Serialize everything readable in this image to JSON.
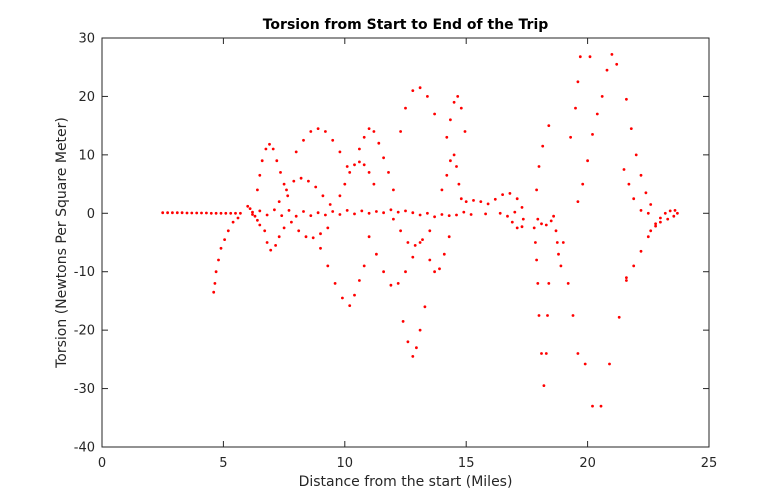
{
  "chart_data": {
    "type": "scatter",
    "title": "Torsion from Start to End of the Trip",
    "xlabel": "Distance from the start (Miles)",
    "ylabel": "Torsion (Newtons Per Square Meter)",
    "xlim": [
      0,
      25
    ],
    "ylim": [
      -40,
      30
    ],
    "xticks": [
      0,
      5,
      10,
      15,
      20,
      25
    ],
    "yticks": [
      -40,
      -30,
      -20,
      -10,
      0,
      10,
      20,
      30
    ],
    "grid": false,
    "marker_color": "#ff0000",
    "series": [
      {
        "points": [
          [
            2.5,
            0.1
          ],
          [
            2.7,
            0.1
          ],
          [
            2.9,
            0.1
          ],
          [
            3.1,
            0.1
          ],
          [
            3.3,
            0.1
          ],
          [
            3.5,
            0.05
          ],
          [
            3.7,
            0.05
          ],
          [
            3.9,
            0.05
          ],
          [
            4.1,
            0.05
          ],
          [
            4.3,
            0.05
          ],
          [
            4.5,
            0.0
          ],
          [
            4.7,
            0.0
          ],
          [
            4.9,
            0.0
          ],
          [
            5.1,
            0.0
          ],
          [
            5.3,
            0.0
          ],
          [
            5.5,
            0.0
          ],
          [
            5.7,
            0.0
          ],
          [
            4.6,
            -13.5
          ],
          [
            4.65,
            -12.0
          ],
          [
            4.7,
            -10.0
          ],
          [
            4.8,
            -8.0
          ],
          [
            4.9,
            -6.0
          ],
          [
            5.05,
            -4.5
          ],
          [
            5.2,
            -3.0
          ],
          [
            5.4,
            -1.5
          ],
          [
            5.6,
            -0.8
          ],
          [
            6.0,
            1.2
          ],
          [
            6.1,
            0.8
          ],
          [
            6.2,
            0.2
          ],
          [
            6.3,
            -0.5
          ],
          [
            6.4,
            -1.2
          ],
          [
            6.5,
            -2.0
          ],
          [
            6.4,
            4.0
          ],
          [
            6.5,
            6.5
          ],
          [
            6.6,
            9.0
          ],
          [
            6.75,
            11.0
          ],
          [
            6.9,
            11.8
          ],
          [
            7.05,
            11.0
          ],
          [
            7.2,
            9.0
          ],
          [
            7.35,
            7.0
          ],
          [
            7.5,
            5.0
          ],
          [
            7.65,
            3.0
          ],
          [
            6.7,
            -3.0
          ],
          [
            6.8,
            -5.0
          ],
          [
            6.95,
            -6.3
          ],
          [
            7.15,
            -5.5
          ],
          [
            7.3,
            -4.0
          ],
          [
            7.5,
            -2.5
          ],
          [
            7.3,
            2.0
          ],
          [
            7.6,
            4.0
          ],
          [
            7.9,
            5.5
          ],
          [
            8.2,
            6.0
          ],
          [
            8.5,
            5.5
          ],
          [
            8.8,
            4.5
          ],
          [
            9.1,
            3.0
          ],
          [
            9.4,
            1.5
          ],
          [
            7.8,
            -1.5
          ],
          [
            8.1,
            -3.0
          ],
          [
            8.4,
            -4.0
          ],
          [
            8.7,
            -4.2
          ],
          [
            9.0,
            -3.5
          ],
          [
            9.3,
            -2.5
          ],
          [
            8.0,
            10.5
          ],
          [
            8.3,
            12.5
          ],
          [
            8.6,
            14.0
          ],
          [
            8.9,
            14.5
          ],
          [
            9.2,
            14.0
          ],
          [
            9.5,
            12.5
          ],
          [
            9.8,
            10.5
          ],
          [
            10.1,
            8.0
          ],
          [
            9.0,
            -6.0
          ],
          [
            9.3,
            -9.0
          ],
          [
            9.6,
            -12.0
          ],
          [
            9.9,
            -14.5
          ],
          [
            10.2,
            -15.8
          ],
          [
            10.4,
            -14.0
          ],
          [
            10.6,
            -11.5
          ],
          [
            10.8,
            -9.0
          ],
          [
            9.8,
            3.0
          ],
          [
            10.0,
            5.0
          ],
          [
            10.2,
            7.0
          ],
          [
            10.4,
            8.3
          ],
          [
            10.6,
            8.8
          ],
          [
            10.8,
            8.3
          ],
          [
            11.0,
            7.0
          ],
          [
            11.2,
            5.0
          ],
          [
            10.6,
            11.0
          ],
          [
            10.8,
            13.0
          ],
          [
            11.0,
            14.5
          ],
          [
            11.2,
            14.0
          ],
          [
            11.4,
            12.0
          ],
          [
            11.6,
            9.5
          ],
          [
            11.8,
            7.0
          ],
          [
            12.0,
            4.0
          ],
          [
            11.0,
            -4.0
          ],
          [
            11.3,
            -7.0
          ],
          [
            11.6,
            -10.0
          ],
          [
            11.9,
            -12.3
          ],
          [
            12.2,
            -12.0
          ],
          [
            12.5,
            -10.0
          ],
          [
            12.8,
            -7.5
          ],
          [
            13.1,
            -5.0
          ],
          [
            12.0,
            -1.0
          ],
          [
            12.3,
            -3.0
          ],
          [
            12.6,
            -5.0
          ],
          [
            12.9,
            -5.5
          ],
          [
            13.2,
            -4.5
          ],
          [
            13.5,
            -3.0
          ],
          [
            12.3,
            14.0
          ],
          [
            12.5,
            18.0
          ],
          [
            12.8,
            21.0
          ],
          [
            13.1,
            21.5
          ],
          [
            13.4,
            20.0
          ],
          [
            13.7,
            17.0
          ],
          [
            12.4,
            -18.5
          ],
          [
            12.6,
            -22.0
          ],
          [
            12.8,
            -24.5
          ],
          [
            12.95,
            -23.0
          ],
          [
            13.1,
            -20.0
          ],
          [
            13.3,
            -16.0
          ],
          [
            13.5,
            -8.0
          ],
          [
            13.7,
            -10.0
          ],
          [
            13.9,
            -9.5
          ],
          [
            14.1,
            -7.0
          ],
          [
            14.3,
            -4.0
          ],
          [
            14.0,
            4.0
          ],
          [
            14.2,
            6.5
          ],
          [
            14.35,
            9.0
          ],
          [
            14.5,
            10.0
          ],
          [
            14.6,
            8.0
          ],
          [
            14.7,
            5.0
          ],
          [
            14.8,
            2.5
          ],
          [
            14.2,
            13.0
          ],
          [
            14.35,
            16.0
          ],
          [
            14.5,
            19.0
          ],
          [
            14.65,
            20.0
          ],
          [
            14.8,
            18.0
          ],
          [
            14.95,
            14.0
          ],
          [
            6.2,
            -0.2
          ],
          [
            6.8,
            -0.3
          ],
          [
            7.4,
            -0.4
          ],
          [
            8.0,
            -0.5
          ],
          [
            8.6,
            -0.4
          ],
          [
            9.2,
            -0.3
          ],
          [
            9.8,
            -0.2
          ],
          [
            10.4,
            -0.1
          ],
          [
            11.0,
            0.0
          ],
          [
            11.6,
            0.1
          ],
          [
            12.2,
            0.2
          ],
          [
            12.8,
            0.1
          ],
          [
            13.4,
            0.0
          ],
          [
            14.0,
            -0.2
          ],
          [
            14.6,
            -0.3
          ],
          [
            15.2,
            -0.2
          ],
          [
            15.8,
            -0.1
          ],
          [
            16.4,
            0.0
          ],
          [
            17.0,
            0.2
          ],
          [
            6.5,
            0.4
          ],
          [
            7.1,
            0.6
          ],
          [
            7.7,
            0.5
          ],
          [
            8.3,
            0.3
          ],
          [
            8.9,
            0.1
          ],
          [
            9.5,
            0.3
          ],
          [
            10.1,
            0.5
          ],
          [
            10.7,
            0.4
          ],
          [
            11.3,
            0.3
          ],
          [
            11.9,
            0.6
          ],
          [
            12.5,
            0.4
          ],
          [
            13.1,
            -0.3
          ],
          [
            13.7,
            -0.6
          ],
          [
            14.3,
            -0.4
          ],
          [
            14.9,
            0.2
          ],
          [
            15.0,
            2.0
          ],
          [
            15.3,
            2.2
          ],
          [
            15.6,
            2.0
          ],
          [
            15.9,
            1.6
          ],
          [
            16.2,
            2.4
          ],
          [
            16.5,
            3.2
          ],
          [
            16.8,
            3.4
          ],
          [
            17.1,
            2.5
          ],
          [
            17.3,
            1.0
          ],
          [
            17.35,
            -1.0
          ],
          [
            17.3,
            -2.3
          ],
          [
            17.1,
            -2.5
          ],
          [
            16.9,
            -1.5
          ],
          [
            16.7,
            -0.5
          ],
          [
            17.8,
            -2.5
          ],
          [
            17.85,
            -5.0
          ],
          [
            17.9,
            -8.0
          ],
          [
            17.95,
            -12.0
          ],
          [
            18.0,
            -17.5
          ],
          [
            18.1,
            -24.0
          ],
          [
            18.2,
            -29.5
          ],
          [
            18.3,
            -24.0
          ],
          [
            18.35,
            -17.5
          ],
          [
            18.4,
            -12.0
          ],
          [
            17.9,
            4.0
          ],
          [
            18.0,
            8.0
          ],
          [
            18.15,
            11.5
          ],
          [
            18.4,
            15.0
          ],
          [
            17.95,
            -1.0
          ],
          [
            18.1,
            -1.8
          ],
          [
            18.3,
            -2.0
          ],
          [
            18.5,
            -1.3
          ],
          [
            18.6,
            -0.5
          ],
          [
            18.7,
            -3.0
          ],
          [
            18.75,
            -5.0
          ],
          [
            18.8,
            -7.0
          ],
          [
            18.9,
            -9.0
          ],
          [
            19.0,
            -5.0
          ],
          [
            19.2,
            -12.0
          ],
          [
            19.4,
            -17.5
          ],
          [
            19.6,
            -24.0
          ],
          [
            19.9,
            -25.8
          ],
          [
            19.3,
            13.0
          ],
          [
            19.5,
            18.0
          ],
          [
            19.6,
            22.5
          ],
          [
            19.7,
            26.8
          ],
          [
            20.1,
            26.8
          ],
          [
            19.6,
            2.0
          ],
          [
            19.8,
            5.0
          ],
          [
            20.0,
            9.0
          ],
          [
            20.2,
            13.5
          ],
          [
            20.4,
            17.0
          ],
          [
            20.6,
            20.0
          ],
          [
            20.8,
            24.5
          ],
          [
            21.0,
            27.2
          ],
          [
            21.2,
            25.5
          ],
          [
            20.2,
            -33.0
          ],
          [
            20.55,
            -33.0
          ],
          [
            20.9,
            -25.8
          ],
          [
            21.3,
            -17.8
          ],
          [
            21.6,
            -11.5
          ],
          [
            21.6,
            19.5
          ],
          [
            21.8,
            14.5
          ],
          [
            22.0,
            10.0
          ],
          [
            22.2,
            6.5
          ],
          [
            22.4,
            3.5
          ],
          [
            22.6,
            1.5
          ],
          [
            22.6,
            -3.0
          ],
          [
            22.8,
            -1.8
          ],
          [
            23.0,
            -0.8
          ],
          [
            23.2,
            0.0
          ],
          [
            23.4,
            0.4
          ],
          [
            23.6,
            0.5
          ],
          [
            23.7,
            0.0
          ],
          [
            23.55,
            -0.5
          ],
          [
            23.3,
            -1.0
          ],
          [
            23.0,
            -1.5
          ],
          [
            22.8,
            -2.2
          ],
          [
            22.5,
            -4.0
          ],
          [
            22.2,
            -6.5
          ],
          [
            21.9,
            -9.0
          ],
          [
            21.6,
            -11.0
          ],
          [
            21.5,
            7.5
          ],
          [
            21.7,
            5.0
          ],
          [
            21.9,
            2.5
          ],
          [
            22.2,
            0.5
          ],
          [
            22.5,
            0.0
          ]
        ]
      }
    ]
  }
}
